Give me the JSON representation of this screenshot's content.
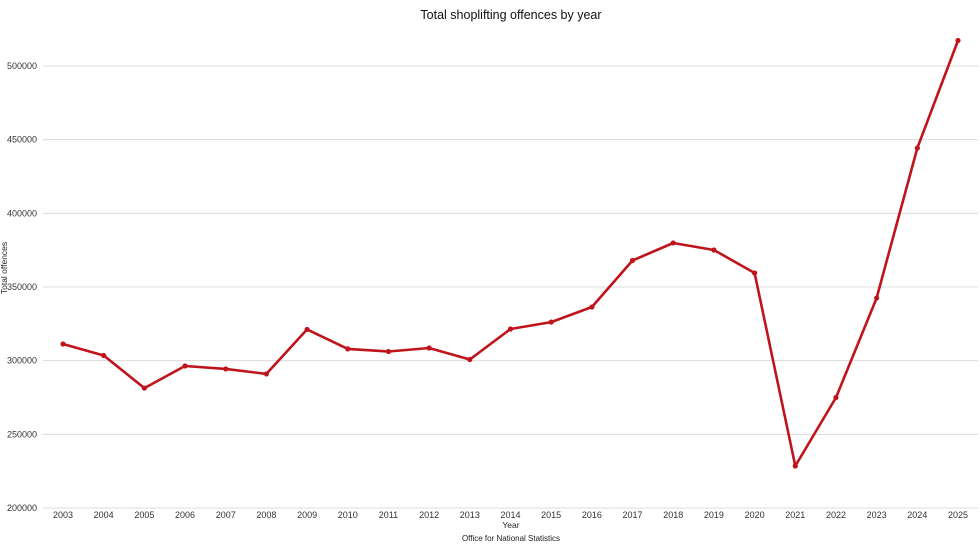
{
  "chart_data": {
    "type": "line",
    "title": "Total shoplifting offences by year",
    "xlabel": "Year",
    "ylabel": "Total offences",
    "caption": "Office for National Statistics",
    "x": [
      "2003",
      "2004",
      "2005",
      "2006",
      "2007",
      "2008",
      "2009",
      "2010",
      "2011",
      "2012",
      "2013",
      "2014",
      "2015",
      "2016",
      "2017",
      "2018",
      "2019",
      "2020",
      "2021",
      "2022",
      "2023",
      "2024",
      "2025"
    ],
    "series": [
      {
        "name": "Total offences",
        "color": "#c0141c",
        "values": [
          311300,
          303500,
          281400,
          296400,
          294400,
          291000,
          321200,
          308000,
          306200,
          308600,
          300800,
          321500,
          326200,
          336400,
          368000,
          379900,
          375100,
          359500,
          228500,
          275000,
          342500,
          444300,
          517300
        ]
      }
    ],
    "yticks": [
      200000,
      250000,
      300000,
      350000,
      400000,
      450000,
      500000
    ],
    "ylim": [
      200000,
      520000
    ],
    "grid": true,
    "legend": "none"
  }
}
